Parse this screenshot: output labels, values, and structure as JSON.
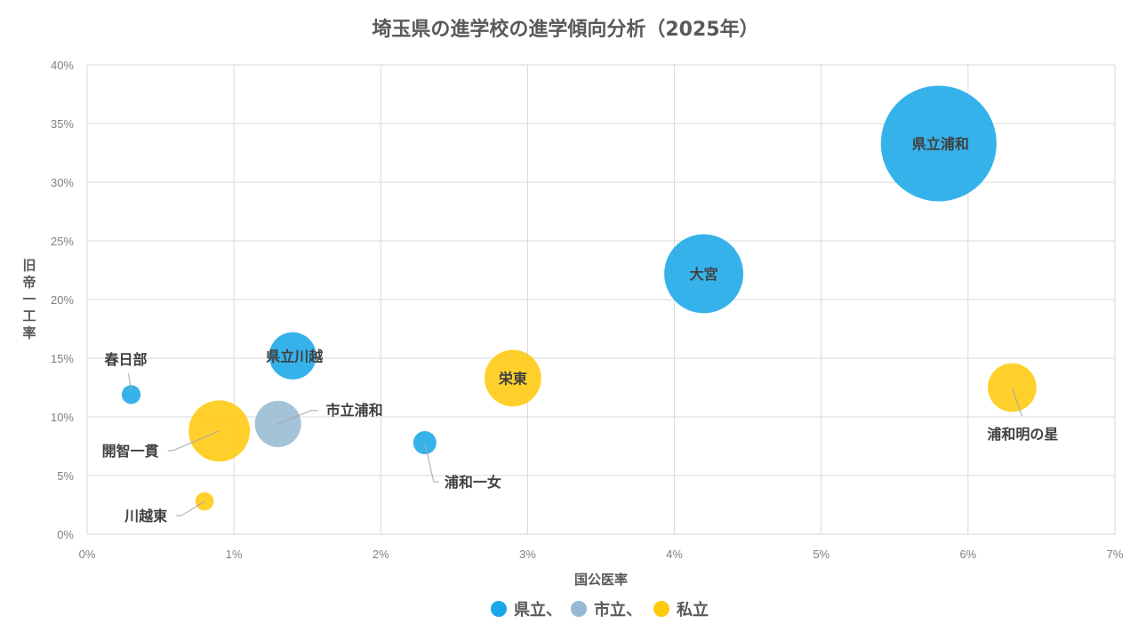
{
  "chart_data": {
    "type": "bubble",
    "title": "埼玉県の進学校の進学傾向分析（2025年）",
    "xlabel": "国公医率",
    "ylabel": "旧帝一工率",
    "xlim": [
      0,
      7
    ],
    "ylim": [
      0,
      40
    ],
    "x_ticks": [
      "0%",
      "1%",
      "2%",
      "3%",
      "4%",
      "5%",
      "6%",
      "7%"
    ],
    "y_ticks": [
      "0%",
      "5%",
      "10%",
      "15%",
      "20%",
      "25%",
      "30%",
      "35%",
      "40%"
    ],
    "grid": true,
    "legend_position": "bottom",
    "series": [
      {
        "name": "県立",
        "legend_label": "県立、",
        "color": "#1AA7E8",
        "points": [
          {
            "label": "春日部",
            "x": 0.3,
            "y": 11.9,
            "size": 0.8
          },
          {
            "label": "県立川越",
            "x": 1.4,
            "y": 15.2,
            "size": 5
          },
          {
            "label": "浦和一女",
            "x": 2.3,
            "y": 7.8,
            "size": 1.2
          },
          {
            "label": "大宮",
            "x": 4.2,
            "y": 22.2,
            "size": 14
          },
          {
            "label": "県立浦和",
            "x": 5.8,
            "y": 33.3,
            "size": 30
          }
        ]
      },
      {
        "name": "市立",
        "legend_label": "市立、",
        "color": "#97B9D3",
        "points": [
          {
            "label": "市立浦和",
            "x": 1.3,
            "y": 9.4,
            "size": 4.8
          }
        ]
      },
      {
        "name": "私立",
        "legend_label": "私立",
        "color": "#FFC90E",
        "points": [
          {
            "label": "開智一貫",
            "x": 0.9,
            "y": 8.8,
            "size": 8.4
          },
          {
            "label": "川越東",
            "x": 0.8,
            "y": 2.8,
            "size": 0.75
          },
          {
            "label": "栄東",
            "x": 2.9,
            "y": 13.3,
            "size": 7.2
          },
          {
            "label": "浦和明の星",
            "x": 6.3,
            "y": 12.5,
            "size": 5.3
          }
        ]
      }
    ]
  }
}
